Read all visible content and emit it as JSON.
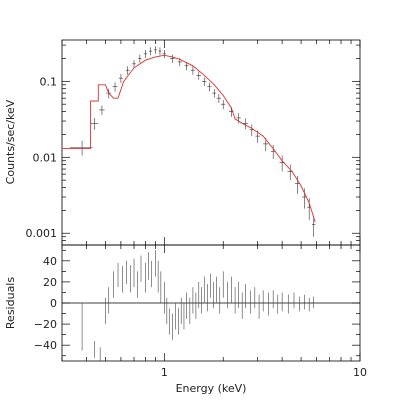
{
  "chart_data": [
    {
      "type": "scatter",
      "title": "",
      "xlabel": "",
      "ylabel": "Counts/sec/keV",
      "xscale": "log",
      "yscale": "log",
      "xlim": [
        0.3,
        10
      ],
      "ylim": [
        0.0007,
        0.35
      ],
      "yticks": [
        0.001,
        0.01,
        0.1
      ],
      "ytick_labels": [
        "0.001",
        "0.01",
        "0.1"
      ],
      "series": [
        {
          "style": "crosses-with-errorbars",
          "color": "#333333",
          "points": [
            {
              "x": 0.38,
              "xerr": 0.05,
              "y": 0.0135,
              "yerr": 0.003
            },
            {
              "x": 0.44,
              "xerr": 0.02,
              "y": 0.028,
              "yerr": 0.005
            },
            {
              "x": 0.48,
              "xerr": 0.015,
              "y": 0.042,
              "yerr": 0.006
            },
            {
              "x": 0.52,
              "xerr": 0.015,
              "y": 0.07,
              "yerr": 0.01
            },
            {
              "x": 0.56,
              "xerr": 0.015,
              "y": 0.085,
              "yerr": 0.012
            },
            {
              "x": 0.6,
              "xerr": 0.015,
              "y": 0.11,
              "yerr": 0.015
            },
            {
              "x": 0.65,
              "xerr": 0.015,
              "y": 0.14,
              "yerr": 0.018
            },
            {
              "x": 0.7,
              "xerr": 0.015,
              "y": 0.17,
              "yerr": 0.02
            },
            {
              "x": 0.75,
              "xerr": 0.015,
              "y": 0.2,
              "yerr": 0.025
            },
            {
              "x": 0.8,
              "xerr": 0.015,
              "y": 0.23,
              "yerr": 0.028
            },
            {
              "x": 0.85,
              "xerr": 0.015,
              "y": 0.25,
              "yerr": 0.03
            },
            {
              "x": 0.9,
              "xerr": 0.015,
              "y": 0.26,
              "yerr": 0.03
            },
            {
              "x": 0.95,
              "xerr": 0.015,
              "y": 0.25,
              "yerr": 0.03
            },
            {
              "x": 1.0,
              "xerr": 0.02,
              "y": 0.23,
              "yerr": 0.028
            },
            {
              "x": 1.1,
              "xerr": 0.03,
              "y": 0.2,
              "yerr": 0.025
            },
            {
              "x": 1.2,
              "xerr": 0.03,
              "y": 0.18,
              "yerr": 0.022
            },
            {
              "x": 1.3,
              "xerr": 0.03,
              "y": 0.16,
              "yerr": 0.02
            },
            {
              "x": 1.4,
              "xerr": 0.03,
              "y": 0.14,
              "yerr": 0.018
            },
            {
              "x": 1.5,
              "xerr": 0.04,
              "y": 0.12,
              "yerr": 0.015
            },
            {
              "x": 1.6,
              "xerr": 0.04,
              "y": 0.1,
              "yerr": 0.013
            },
            {
              "x": 1.7,
              "xerr": 0.04,
              "y": 0.085,
              "yerr": 0.011
            },
            {
              "x": 1.8,
              "xerr": 0.04,
              "y": 0.07,
              "yerr": 0.009
            },
            {
              "x": 1.9,
              "xerr": 0.05,
              "y": 0.06,
              "yerr": 0.008
            },
            {
              "x": 2.0,
              "xerr": 0.05,
              "y": 0.05,
              "yerr": 0.007
            },
            {
              "x": 2.2,
              "xerr": 0.06,
              "y": 0.04,
              "yerr": 0.006
            },
            {
              "x": 2.4,
              "xerr": 0.06,
              "y": 0.033,
              "yerr": 0.005
            },
            {
              "x": 2.6,
              "xerr": 0.07,
              "y": 0.028,
              "yerr": 0.0045
            },
            {
              "x": 2.8,
              "xerr": 0.07,
              "y": 0.023,
              "yerr": 0.004
            },
            {
              "x": 3.0,
              "xerr": 0.08,
              "y": 0.019,
              "yerr": 0.0035
            },
            {
              "x": 3.3,
              "xerr": 0.1,
              "y": 0.015,
              "yerr": 0.003
            },
            {
              "x": 3.6,
              "xerr": 0.1,
              "y": 0.012,
              "yerr": 0.0025
            },
            {
              "x": 4.0,
              "xerr": 0.12,
              "y": 0.0085,
              "yerr": 0.002
            },
            {
              "x": 4.4,
              "xerr": 0.14,
              "y": 0.0065,
              "yerr": 0.0015
            },
            {
              "x": 4.8,
              "xerr": 0.15,
              "y": 0.0045,
              "yerr": 0.0012
            },
            {
              "x": 5.2,
              "xerr": 0.15,
              "y": 0.003,
              "yerr": 0.0009
            },
            {
              "x": 5.5,
              "xerr": 0.12,
              "y": 0.0022,
              "yerr": 0.0007
            },
            {
              "x": 5.8,
              "xerr": 0.12,
              "y": 0.0013,
              "yerr": 0.0004
            }
          ]
        },
        {
          "style": "step-model",
          "color": "#e03030",
          "points": [
            {
              "x": 0.3,
              "y": 0.013
            },
            {
              "x": 0.42,
              "y": 0.013
            },
            {
              "x": 0.42,
              "y": 0.055
            },
            {
              "x": 0.46,
              "y": 0.055
            },
            {
              "x": 0.46,
              "y": 0.09
            },
            {
              "x": 0.5,
              "y": 0.09
            },
            {
              "x": 0.52,
              "y": 0.07
            },
            {
              "x": 0.55,
              "y": 0.06
            },
            {
              "x": 0.58,
              "y": 0.06
            },
            {
              "x": 0.62,
              "y": 0.1
            },
            {
              "x": 0.7,
              "y": 0.15
            },
            {
              "x": 0.8,
              "y": 0.19
            },
            {
              "x": 0.9,
              "y": 0.21
            },
            {
              "x": 1.0,
              "y": 0.22
            },
            {
              "x": 1.1,
              "y": 0.21
            },
            {
              "x": 1.2,
              "y": 0.195
            },
            {
              "x": 1.4,
              "y": 0.16
            },
            {
              "x": 1.6,
              "y": 0.12
            },
            {
              "x": 1.8,
              "y": 0.09
            },
            {
              "x": 2.0,
              "y": 0.065
            },
            {
              "x": 2.2,
              "y": 0.045
            },
            {
              "x": 2.3,
              "y": 0.032
            },
            {
              "x": 2.5,
              "y": 0.028
            },
            {
              "x": 2.8,
              "y": 0.024
            },
            {
              "x": 3.2,
              "y": 0.019
            },
            {
              "x": 3.6,
              "y": 0.013
            },
            {
              "x": 4.0,
              "y": 0.009
            },
            {
              "x": 4.5,
              "y": 0.0065
            },
            {
              "x": 5.0,
              "y": 0.0042
            },
            {
              "x": 5.5,
              "y": 0.0025
            },
            {
              "x": 5.9,
              "y": 0.0014
            }
          ]
        }
      ]
    },
    {
      "type": "scatter",
      "title": "",
      "xlabel": "Energy (keV)",
      "ylabel": "Residuals",
      "xscale": "log",
      "xlim": [
        0.3,
        10
      ],
      "ylim": [
        -55,
        55
      ],
      "xticks": [
        1,
        10
      ],
      "xtick_labels": [
        "1",
        "10"
      ],
      "yticks": [
        -40,
        -20,
        0,
        20,
        40
      ],
      "ytick_labels": [
        "−40",
        "−20",
        "0",
        "20",
        "40"
      ],
      "zero_line": true,
      "series": [
        {
          "style": "error-bars",
          "color": "#444444",
          "points": [
            {
              "x": 0.38,
              "lo": -45,
              "hi": 0
            },
            {
              "x": 0.44,
              "lo": -52,
              "hi": -36
            },
            {
              "x": 0.47,
              "lo": -55,
              "hi": -42
            },
            {
              "x": 0.5,
              "lo": -20,
              "hi": 5
            },
            {
              "x": 0.52,
              "lo": -10,
              "hi": 15
            },
            {
              "x": 0.55,
              "lo": 5,
              "hi": 30
            },
            {
              "x": 0.58,
              "lo": 15,
              "hi": 38
            },
            {
              "x": 0.61,
              "lo": 10,
              "hi": 35
            },
            {
              "x": 0.64,
              "lo": 18,
              "hi": 40
            },
            {
              "x": 0.67,
              "lo": 10,
              "hi": 36
            },
            {
              "x": 0.7,
              "lo": 15,
              "hi": 42
            },
            {
              "x": 0.73,
              "lo": 5,
              "hi": 30
            },
            {
              "x": 0.76,
              "lo": 20,
              "hi": 45
            },
            {
              "x": 0.8,
              "lo": 10,
              "hi": 38
            },
            {
              "x": 0.83,
              "lo": 22,
              "hi": 48
            },
            {
              "x": 0.86,
              "lo": 15,
              "hi": 40
            },
            {
              "x": 0.9,
              "lo": 25,
              "hi": 50
            },
            {
              "x": 0.93,
              "lo": 10,
              "hi": 40
            },
            {
              "x": 0.96,
              "lo": 0,
              "hi": 30
            },
            {
              "x": 1.0,
              "lo": -10,
              "hi": 20
            },
            {
              "x": 1.03,
              "lo": -20,
              "hi": 5
            },
            {
              "x": 1.06,
              "lo": -30,
              "hi": -5
            },
            {
              "x": 1.1,
              "lo": -35,
              "hi": -10
            },
            {
              "x": 1.14,
              "lo": -25,
              "hi": 0
            },
            {
              "x": 1.18,
              "lo": -30,
              "hi": -5
            },
            {
              "x": 1.22,
              "lo": -20,
              "hi": 5
            },
            {
              "x": 1.26,
              "lo": -25,
              "hi": 0
            },
            {
              "x": 1.3,
              "lo": -15,
              "hi": 10
            },
            {
              "x": 1.35,
              "lo": -20,
              "hi": 5
            },
            {
              "x": 1.4,
              "lo": -10,
              "hi": 15
            },
            {
              "x": 1.45,
              "lo": -15,
              "hi": 10
            },
            {
              "x": 1.5,
              "lo": -5,
              "hi": 20
            },
            {
              "x": 1.55,
              "lo": -10,
              "hi": 15
            },
            {
              "x": 1.6,
              "lo": 0,
              "hi": 25
            },
            {
              "x": 1.66,
              "lo": -8,
              "hi": 18
            },
            {
              "x": 1.72,
              "lo": 5,
              "hi": 28
            },
            {
              "x": 1.78,
              "lo": -5,
              "hi": 20
            },
            {
              "x": 1.85,
              "lo": 0,
              "hi": 25
            },
            {
              "x": 1.92,
              "lo": -10,
              "hi": 15
            },
            {
              "x": 2.0,
              "lo": 5,
              "hi": 30
            },
            {
              "x": 2.1,
              "lo": -5,
              "hi": 20
            },
            {
              "x": 2.2,
              "lo": 0,
              "hi": 25
            },
            {
              "x": 2.3,
              "lo": -10,
              "hi": 15
            },
            {
              "x": 2.4,
              "lo": -5,
              "hi": 20
            },
            {
              "x": 2.5,
              "lo": -15,
              "hi": 10
            },
            {
              "x": 2.6,
              "lo": -5,
              "hi": 18
            },
            {
              "x": 2.75,
              "lo": -10,
              "hi": 12
            },
            {
              "x": 2.9,
              "lo": -5,
              "hi": 15
            },
            {
              "x": 3.05,
              "lo": -15,
              "hi": 8
            },
            {
              "x": 3.2,
              "lo": -8,
              "hi": 12
            },
            {
              "x": 3.4,
              "lo": -12,
              "hi": 10
            },
            {
              "x": 3.6,
              "lo": -5,
              "hi": 12
            },
            {
              "x": 3.8,
              "lo": -10,
              "hi": 8
            },
            {
              "x": 4.0,
              "lo": -8,
              "hi": 10
            },
            {
              "x": 4.3,
              "lo": -10,
              "hi": 8
            },
            {
              "x": 4.6,
              "lo": -5,
              "hi": 10
            },
            {
              "x": 4.9,
              "lo": -8,
              "hi": 6
            },
            {
              "x": 5.2,
              "lo": -6,
              "hi": 8
            },
            {
              "x": 5.5,
              "lo": -8,
              "hi": 5
            },
            {
              "x": 5.8,
              "lo": -5,
              "hi": 6
            }
          ]
        }
      ]
    }
  ]
}
